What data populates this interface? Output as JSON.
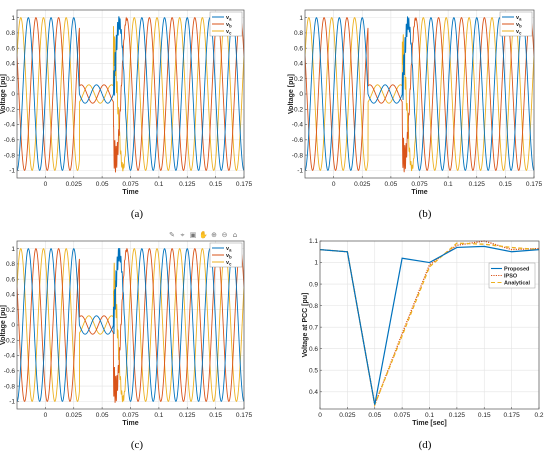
{
  "panels": [
    {
      "id": "a",
      "caption": "(a)",
      "ylabel": "Voltage [pu]",
      "xlabel": "Time"
    },
    {
      "id": "b",
      "caption": "(b)",
      "ylabel": "Voltage [pu]",
      "xlabel": "Time"
    },
    {
      "id": "c",
      "caption": "(c)",
      "ylabel": "Voltage [pu]",
      "xlabel": "Time"
    },
    {
      "id": "d",
      "caption": "(d)",
      "ylabel": "Voltage at PCC [pu]",
      "xlabel": "Time [sec]"
    }
  ],
  "colors": {
    "blue": "#0072BD",
    "orange": "#D95319",
    "yellow": "#EDB120",
    "grid": "#e3e3e3",
    "axis": "#555555"
  },
  "toolbar_icons": [
    "brush-icon",
    "data-tip-icon",
    "save-icon",
    "pan-icon",
    "zoom-in-icon",
    "zoom-out-icon",
    "home-icon"
  ],
  "chart_data": [
    {
      "type": "line",
      "panel": "a",
      "xlabel": "Time",
      "ylabel": "Voltage [pu]",
      "xlim": [
        -0.025,
        0.175
      ],
      "ylim": [
        -1.1,
        1.1
      ],
      "xticks": [
        "0",
        "0.025",
        "0.05",
        "0.075",
        "0.1",
        "0.125",
        "0.15",
        "0.175"
      ],
      "yticks": [
        "-1",
        "-0.8",
        "-0.6",
        "-0.4",
        "-0.2",
        "0",
        "0.2",
        "0.4",
        "0.6",
        "0.8",
        "1"
      ],
      "grid": true,
      "legend": "top-right",
      "series": [
        {
          "name": "v_a"
        },
        {
          "name": "v_b"
        },
        {
          "name": "v_c"
        }
      ],
      "signal": {
        "frequency_hz": 50,
        "amplitude_pu": 1.0,
        "sag_start_s": 0.03,
        "sag_end_s": 0.06,
        "sag_amplitude_pu": 0.12
      }
    },
    {
      "type": "line",
      "panel": "b",
      "xlabel": "Time",
      "ylabel": "Voltage [pu]",
      "xlim": [
        -0.025,
        0.175
      ],
      "ylim": [
        -1.1,
        1.1
      ],
      "xticks": [
        "0",
        "0.025",
        "0.05",
        "0.075",
        "0.1",
        "0.125",
        "0.15",
        "0.175"
      ],
      "yticks": [
        "-1",
        "-0.8",
        "-0.6",
        "-0.4",
        "-0.2",
        "0",
        "0.2",
        "0.4",
        "0.6",
        "0.8",
        "1"
      ],
      "grid": true,
      "legend": "top-right",
      "series": [
        {
          "name": "v_a"
        },
        {
          "name": "v_b"
        },
        {
          "name": "v_c"
        }
      ],
      "signal": {
        "frequency_hz": 50,
        "amplitude_pu": 1.0,
        "sag_start_s": 0.03,
        "sag_end_s": 0.06,
        "sag_amplitude_pu": 0.12
      }
    },
    {
      "type": "line",
      "panel": "c",
      "xlabel": "Time",
      "ylabel": "Voltage [pu]",
      "xlim": [
        -0.025,
        0.175
      ],
      "ylim": [
        -1.1,
        1.1
      ],
      "xticks": [
        "0",
        "0.025",
        "0.05",
        "0.075",
        "0.1",
        "0.125",
        "0.15",
        "0.175"
      ],
      "yticks": [
        "-1",
        "-0.8",
        "-0.6",
        "-0.4",
        "-0.2",
        "0",
        "0.2",
        "0.4",
        "0.6",
        "0.8",
        "1"
      ],
      "grid": true,
      "legend": "top-right",
      "series": [
        {
          "name": "v_a"
        },
        {
          "name": "v_b"
        },
        {
          "name": "v_c"
        }
      ],
      "signal": {
        "frequency_hz": 50,
        "amplitude_pu": 1.0,
        "sag_start_s": 0.03,
        "sag_end_s": 0.06,
        "sag_amplitude_pu": 0.12
      }
    },
    {
      "type": "line",
      "panel": "d",
      "xlabel": "Time [sec]",
      "ylabel": "Voltage at PCC [pu]",
      "xlim": [
        0,
        0.2
      ],
      "ylim": [
        0.32,
        1.1
      ],
      "xticks": [
        "0",
        "0.025",
        "0.05",
        "0.075",
        "0.1",
        "0.125",
        "0.15",
        "0.175",
        "0.2"
      ],
      "yticks": [
        "0.4",
        "0.5",
        "0.6",
        "0.7",
        "0.8",
        "0.9",
        "1",
        "1.1"
      ],
      "grid": true,
      "legend": "top-right",
      "series": [
        {
          "name": "Proposed",
          "x": [
            0,
            0.025,
            0.05,
            0.075,
            0.1,
            0.125,
            0.15,
            0.175,
            0.2
          ],
          "y": [
            1.06,
            1.05,
            0.34,
            1.02,
            1.0,
            1.07,
            1.075,
            1.05,
            1.06
          ]
        },
        {
          "name": "IPSO",
          "x": [
            0,
            0.025,
            0.05,
            0.075,
            0.1,
            0.125,
            0.15,
            0.175,
            0.2
          ],
          "y": [
            1.06,
            1.05,
            0.34,
            0.67,
            0.99,
            1.08,
            1.1,
            1.06,
            1.065
          ]
        },
        {
          "name": "Analytical",
          "x": [
            0,
            0.025,
            0.05,
            0.075,
            0.1,
            0.125,
            0.15,
            0.175,
            0.2
          ],
          "y": [
            1.06,
            1.05,
            0.34,
            0.66,
            0.98,
            1.09,
            1.085,
            1.07,
            1.06
          ]
        }
      ]
    }
  ]
}
